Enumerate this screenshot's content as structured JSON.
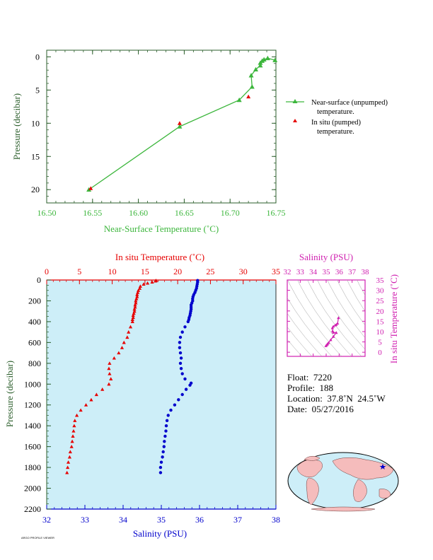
{
  "colors": {
    "green": "#3cb63c",
    "red": "#e60000",
    "blue": "#0000cc",
    "magenta": "#d020b0",
    "dark_green": "#2b5e2b",
    "panel_bg": "#cdeef8",
    "land": "#f5bcbc"
  },
  "top_chart": {
    "xlabel": "Near-Surface Temperature (˚C)",
    "ylabel": "Pressure (decibar)",
    "legend": {
      "near_surface_line1": "Near-surface (unpumped)",
      "near_surface_line2": "temperature.",
      "in_situ_line1": "In situ (pumped)",
      "in_situ_line2": "temperature."
    }
  },
  "bottom_chart": {
    "top_label": "In situ Temperature (˚C)",
    "xlabel": "Salinity (PSU)",
    "ylabel": "Pressure (decibar)"
  },
  "ts_chart": {
    "top_label": "Salinity (PSU)",
    "right_label": "In situ Temperature (˚C)"
  },
  "info": {
    "float": "Float:  7220",
    "profile": "Profile:  188",
    "location": "Location:  37.8˚N  24.5˚W",
    "date": "Date:  05/27/2016"
  },
  "footer_text": "ARGO PROFILE VIEWER",
  "chart_data": [
    {
      "type": "line",
      "title": "",
      "xlabel": "Near-Surface Temperature (˚C)",
      "ylabel": "Pressure (decibar)",
      "xlim": [
        16.5,
        16.75
      ],
      "ylim": [
        22,
        -1
      ],
      "x_ticks": [
        "16.50",
        "16.55",
        "16.60",
        "16.65",
        "16.70",
        "16.75"
      ],
      "y_ticks": [
        "0",
        "5",
        "10",
        "15",
        "20"
      ],
      "legend_position": "right",
      "series": [
        {
          "name": "Near-surface (unpumped) temperature.",
          "marker": "triangle",
          "x": [
            16.749,
            16.741,
            16.737,
            16.735,
            16.733,
            16.733,
            16.728,
            16.723,
            16.724,
            16.71,
            16.645,
            16.546
          ],
          "y": [
            0.5,
            0.2,
            0.4,
            0.6,
            0.9,
            1.3,
            1.9,
            2.8,
            4.5,
            6.5,
            10.5,
            20.0
          ]
        },
        {
          "name": "In situ (pumped) temperature.",
          "marker": "triangle",
          "x": [
            16.72,
            16.645,
            16.548
          ],
          "y": [
            6.0,
            10.0,
            19.8
          ]
        }
      ]
    },
    {
      "type": "scatter",
      "xlabel": "Salinity (PSU)",
      "x2label": "In situ Temperature (˚C)",
      "ylabel": "Pressure (decibar)",
      "xlim": [
        32,
        38
      ],
      "x2lim": [
        0,
        35
      ],
      "ylim": [
        2200,
        0
      ],
      "x_ticks": [
        "32",
        "33",
        "34",
        "35",
        "36",
        "37",
        "38"
      ],
      "x2_ticks": [
        "0",
        "5",
        "10",
        "15",
        "20",
        "25",
        "30",
        "35"
      ],
      "y_ticks": [
        "0",
        "200",
        "400",
        "600",
        "800",
        "1000",
        "1200",
        "1400",
        "1600",
        "1800",
        "2000",
        "2200"
      ],
      "series": [
        {
          "name": "In situ Temperature",
          "axis": "top",
          "points": [
            [
              16.7,
              5
            ],
            [
              16.6,
              10
            ],
            [
              16.1,
              20
            ],
            [
              15.4,
              30
            ],
            [
              14.8,
              40
            ],
            [
              14.3,
              60
            ],
            [
              14.2,
              80
            ],
            [
              14.0,
              100
            ],
            [
              13.9,
              120
            ],
            [
              13.8,
              140
            ],
            [
              13.8,
              160
            ],
            [
              13.7,
              180
            ],
            [
              13.6,
              200
            ],
            [
              13.6,
              220
            ],
            [
              13.5,
              240
            ],
            [
              13.5,
              260
            ],
            [
              13.4,
              280
            ],
            [
              13.4,
              300
            ],
            [
              13.3,
              320
            ],
            [
              13.2,
              340
            ],
            [
              13.2,
              360
            ],
            [
              13.1,
              380
            ],
            [
              13.1,
              400
            ],
            [
              12.8,
              450
            ],
            [
              12.5,
              500
            ],
            [
              12.3,
              550
            ],
            [
              11.8,
              600
            ],
            [
              11.5,
              650
            ],
            [
              11.0,
              700
            ],
            [
              10.3,
              750
            ],
            [
              9.6,
              800
            ],
            [
              9.5,
              850
            ],
            [
              9.6,
              900
            ],
            [
              9.8,
              950
            ],
            [
              9.5,
              1000
            ],
            [
              8.5,
              1050
            ],
            [
              7.6,
              1100
            ],
            [
              6.8,
              1150
            ],
            [
              6.0,
              1200
            ],
            [
              5.2,
              1250
            ],
            [
              4.6,
              1300
            ],
            [
              4.3,
              1350
            ],
            [
              4.2,
              1400
            ],
            [
              4.1,
              1450
            ],
            [
              4.0,
              1500
            ],
            [
              3.9,
              1550
            ],
            [
              3.8,
              1600
            ],
            [
              3.6,
              1650
            ],
            [
              3.5,
              1700
            ],
            [
              3.3,
              1750
            ],
            [
              3.2,
              1800
            ],
            [
              3.1,
              1850
            ]
          ]
        },
        {
          "name": "Salinity",
          "axis": "bottom",
          "points": [
            [
              35.95,
              5
            ],
            [
              35.95,
              20
            ],
            [
              35.94,
              40
            ],
            [
              35.93,
              60
            ],
            [
              35.92,
              80
            ],
            [
              35.9,
              100
            ],
            [
              35.88,
              120
            ],
            [
              35.85,
              140
            ],
            [
              35.83,
              160
            ],
            [
              35.82,
              180
            ],
            [
              35.82,
              200
            ],
            [
              35.8,
              220
            ],
            [
              35.78,
              240
            ],
            [
              35.78,
              260
            ],
            [
              35.78,
              280
            ],
            [
              35.77,
              300
            ],
            [
              35.76,
              320
            ],
            [
              35.75,
              340
            ],
            [
              35.73,
              360
            ],
            [
              35.72,
              380
            ],
            [
              35.7,
              400
            ],
            [
              35.62,
              450
            ],
            [
              35.55,
              500
            ],
            [
              35.5,
              550
            ],
            [
              35.48,
              600
            ],
            [
              35.48,
              650
            ],
            [
              35.5,
              700
            ],
            [
              35.52,
              750
            ],
            [
              35.5,
              800
            ],
            [
              35.52,
              850
            ],
            [
              35.55,
              900
            ],
            [
              35.62,
              950
            ],
            [
              35.78,
              990
            ],
            [
              35.75,
              1010
            ],
            [
              35.65,
              1050
            ],
            [
              35.55,
              1100
            ],
            [
              35.45,
              1150
            ],
            [
              35.35,
              1200
            ],
            [
              35.25,
              1250
            ],
            [
              35.18,
              1300
            ],
            [
              35.15,
              1350
            ],
            [
              35.13,
              1400
            ],
            [
              35.12,
              1450
            ],
            [
              35.1,
              1500
            ],
            [
              35.08,
              1550
            ],
            [
              35.07,
              1600
            ],
            [
              35.05,
              1650
            ],
            [
              35.03,
              1700
            ],
            [
              35.0,
              1750
            ],
            [
              34.98,
              1800
            ],
            [
              34.98,
              1850
            ]
          ]
        }
      ]
    },
    {
      "type": "scatter",
      "xlabel": "Salinity (PSU)",
      "ylabel": "In situ Temperature (˚C)",
      "xlim": [
        32,
        38
      ],
      "ylim": [
        -2,
        35
      ],
      "x_ticks": [
        "32",
        "33",
        "34",
        "35",
        "36",
        "37",
        "38"
      ],
      "y_ticks": [
        "0",
        "5",
        "10",
        "15",
        "20",
        "25",
        "30",
        "35"
      ],
      "series": [
        {
          "name": "T-S",
          "points": [
            [
              35.95,
              16.7
            ],
            [
              35.88,
              14.0
            ],
            [
              35.78,
              13.4
            ],
            [
              35.7,
              13.1
            ],
            [
              35.55,
              12.5
            ],
            [
              35.48,
              11.8
            ],
            [
              35.5,
              10.3
            ],
            [
              35.55,
              9.6
            ],
            [
              35.78,
              9.5
            ],
            [
              35.55,
              7.6
            ],
            [
              35.35,
              6.0
            ],
            [
              35.18,
              4.6
            ],
            [
              35.1,
              4.0
            ],
            [
              35.05,
              3.6
            ],
            [
              34.98,
              3.1
            ]
          ]
        }
      ]
    }
  ]
}
